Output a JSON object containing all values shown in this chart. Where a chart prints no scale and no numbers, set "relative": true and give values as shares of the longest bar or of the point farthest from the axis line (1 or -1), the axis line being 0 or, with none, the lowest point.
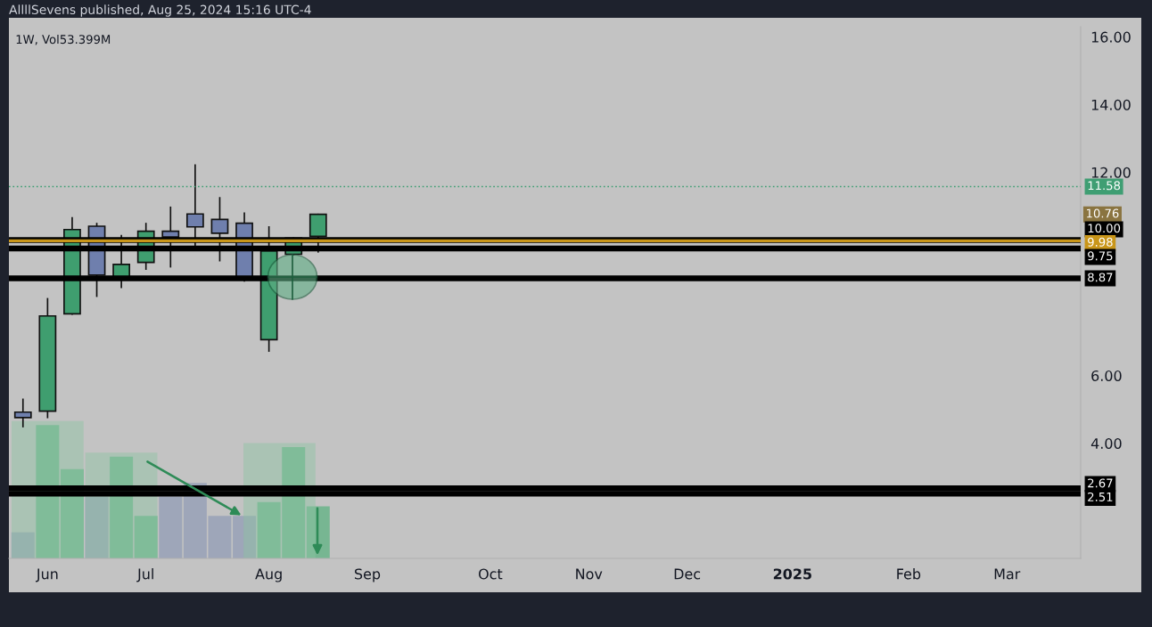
{
  "chart_data": [
    {
      "type": "candlestick",
      "title": "1W, Vol53.399M",
      "annotations": [
        "AllllSevens published, Aug 25, 2024 15:16 UTC-4",
        {
          "text": "10.76",
          "y": 10.76
        }
      ],
      "x": [
        "2024-05-27",
        "2024-06-03",
        "2024-06-10",
        "2024-06-17",
        "2024-06-24",
        "2024-07-01",
        "2024-07-08",
        "2024-07-15",
        "2024-07-22",
        "2024-07-29",
        "2024-08-05",
        "2024-08-12",
        "2024-08-19"
      ],
      "ohlc": [
        [
          4.92,
          5.32,
          4.47,
          4.76
        ],
        [
          4.95,
          8.29,
          4.74,
          7.76
        ],
        [
          7.82,
          10.68,
          7.79,
          10.31
        ],
        [
          10.41,
          10.51,
          8.32,
          8.97
        ],
        [
          8.88,
          10.15,
          8.58,
          9.28
        ],
        [
          9.34,
          10.51,
          9.12,
          10.26
        ],
        [
          10.26,
          10.99,
          9.19,
          10.09
        ],
        [
          10.77,
          12.24,
          9.75,
          10.39
        ],
        [
          10.61,
          11.27,
          9.37,
          10.2
        ],
        [
          10.5,
          10.82,
          8.77,
          8.88
        ],
        [
          7.06,
          10.41,
          6.7,
          9.68
        ],
        [
          9.58,
          10.08,
          9.55,
          10.06
        ],
        [
          10.11,
          10.78,
          9.63,
          10.76
        ]
      ],
      "colors": [
        "#6f7fad",
        "#3f9e6f",
        "#3f9e6f",
        "#6f7fad",
        "#3f9e6f",
        "#3f9e6f",
        "#6f7fad",
        "#6f7fad",
        "#6f7fad",
        "#6f7fad",
        "#3f9e6f",
        "#3f9e6f",
        "#3f9e6f"
      ],
      "ref_lines": [
        {
          "axis": "y",
          "value": 11.58,
          "label": "11.58",
          "color": "#3f9e73",
          "line_style": "dotted"
        },
        {
          "axis": "y",
          "value": 10.0,
          "label": "10.00",
          "color": "#000000",
          "line_style": "solid"
        },
        {
          "axis": "y",
          "value": 9.98,
          "label": "9.98",
          "color": "#c9961a",
          "line_style": "solid"
        },
        {
          "axis": "y",
          "value": 9.75,
          "label": "9.75",
          "color": "#000000",
          "line_style": "solid"
        },
        {
          "axis": "y",
          "value": 8.87,
          "label": "8.87",
          "color": "#000000",
          "line_style": "solid"
        },
        {
          "axis": "y",
          "value": 2.67,
          "label": "2.67",
          "color": "#000000",
          "line_style": "solid"
        },
        {
          "axis": "y",
          "value": 2.51,
          "label": "2.51",
          "color": "#000000",
          "line_style": "solid"
        }
      ],
      "xlim": [
        "2024-05-23",
        "2025-03-24"
      ],
      "xticks": [
        {
          "value": "2024-06-03",
          "label": "Jun"
        },
        {
          "value": "2024-07-01",
          "label": "Jul"
        },
        {
          "value": "2024-08-05",
          "label": "Aug"
        },
        {
          "value": "2024-09-02",
          "label": "Sep"
        },
        {
          "value": "2024-10-07",
          "label": "Oct"
        },
        {
          "value": "2024-11-04",
          "label": "Nov"
        },
        {
          "value": "2024-12-02",
          "label": "Dec"
        },
        {
          "value": "2025-01-01",
          "label": "2025"
        },
        {
          "value": "2025-02-03",
          "label": "Feb"
        },
        {
          "value": "2025-03-03",
          "label": "Mar"
        }
      ],
      "ylim": [
        0.6,
        16.3
      ],
      "yticks": [
        {
          "value": 4,
          "label": "4.00"
        },
        {
          "value": 6,
          "label": "6.00"
        },
        {
          "value": 12,
          "label": "12.00"
        },
        {
          "value": 14,
          "label": "14.00"
        },
        {
          "value": 16,
          "label": "16.00"
        }
      ],
      "grid": false
    },
    {
      "type": "bar",
      "relative": true,
      "tick_labels": false,
      "x": [
        "2024-05-27",
        "2024-06-03",
        "2024-06-10",
        "2024-06-17",
        "2024-06-24",
        "2024-07-01",
        "2024-07-08",
        "2024-07-15",
        "2024-07-22",
        "2024-07-29",
        "2024-08-05",
        "2024-08-12",
        "2024-08-19"
      ],
      "xlim": [
        "2024-05-23",
        "2025-03-24"
      ],
      "series": [
        {
          "values": [
            0.19,
            0.97,
            0.65,
            0.45,
            0.74,
            0.31,
            0.45,
            0.55,
            0.31,
            0.31,
            0.41,
            0.81,
            0.38
          ],
          "colors": [
            "#9aa3b8",
            "#6fb58d",
            "#6fb58d",
            "#9aa3b8",
            "#6fb58d",
            "#6fb58d",
            "#9aa3b8",
            "#9aa3b8",
            "#9aa3b8",
            "#9aa3b8",
            "#6fb58d",
            "#6fb58d",
            "#6fb58d"
          ]
        },
        {
          "x": [
            "2024-06-03",
            "2024-06-24",
            "2024-08-08"
          ],
          "values": [
            1.0,
            0.77,
            0.84
          ],
          "colors": [
            "#8cc4a2",
            "#8cc4a2",
            "#8cc4a2"
          ]
        }
      ]
    }
  ]
}
